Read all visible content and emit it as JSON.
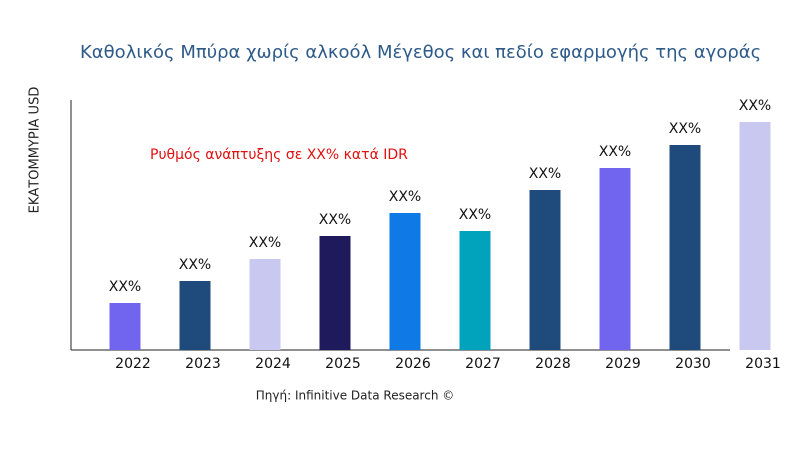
{
  "chart_data": {
    "type": "bar",
    "title": "Καθολικός Μπύρα χωρίς αλκοόλ Μέγεθος και πεδίο εφαρμογής της αγοράς",
    "y_label": "ΕΚΑΤΟΜΜΥΡΙΑ USD",
    "annotation": "Ρυθμός ανάπτυξης σε XX% κατά IDR",
    "source": "Πηγή: Infinitive Data Research ©",
    "categories": [
      "2022",
      "2023",
      "2024",
      "2025",
      "2026",
      "2027",
      "2028",
      "2029",
      "2030",
      "2031"
    ],
    "values": [
      47,
      69,
      91,
      114,
      137,
      119,
      160,
      182,
      205,
      228
    ],
    "value_labels": [
      "XX%",
      "XX%",
      "XX%",
      "XX%",
      "XX%",
      "XX%",
      "XX%",
      "XX%",
      "XX%",
      "XX%"
    ],
    "colors": [
      "#7165f0",
      "#1f4a7c",
      "#c8c8f0",
      "#1e1a5c",
      "#0f7ae5",
      "#00a3bb",
      "#1f4a7c",
      "#7165f0",
      "#1f4a7c",
      "#c8c8f0"
    ],
    "ylim": [
      0,
      250
    ]
  }
}
